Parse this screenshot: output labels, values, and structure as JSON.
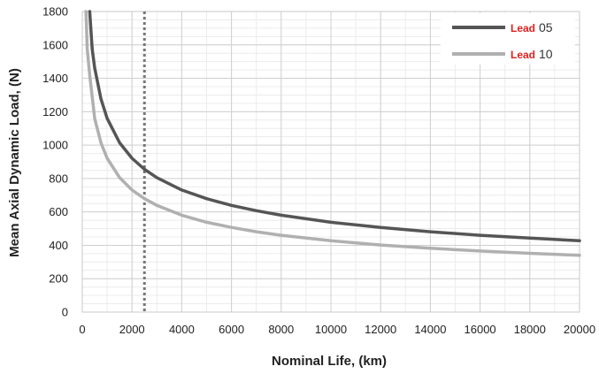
{
  "chart_data": {
    "type": "line",
    "xlabel": "Nominal Life, (km)",
    "ylabel": "Mean Axial Dynamic Load, (N)",
    "xlim": [
      0,
      20000
    ],
    "ylim": [
      0,
      1800
    ],
    "x_ticks": [
      0,
      2000,
      4000,
      6000,
      8000,
      10000,
      12000,
      14000,
      16000,
      18000,
      20000
    ],
    "y_ticks": [
      0,
      200,
      400,
      600,
      800,
      1000,
      1200,
      1400,
      1600,
      1800
    ],
    "grid": true,
    "legend_position": "top-right",
    "reference_line": {
      "x": 2500,
      "style": "dotted"
    },
    "series": [
      {
        "name": "Lead 05",
        "name_parts": [
          "Lead",
          "05"
        ],
        "color": "#555555",
        "x": [
          300,
          400,
          500,
          750,
          1000,
          1500,
          2000,
          2500,
          3000,
          4000,
          5000,
          6000,
          7000,
          8000,
          10000,
          12000,
          14000,
          16000,
          18000,
          20000
        ],
        "y": [
          1800,
          1575,
          1462,
          1277,
          1160,
          1014,
          921,
          855,
          805,
          731,
          679,
          639,
          607,
          580,
          538,
          507,
          481,
          460,
          443,
          427
        ]
      },
      {
        "name": "Lead 10",
        "name_parts": [
          "Lead",
          "10"
        ],
        "color": "#b0b0b0",
        "x": [
          150,
          200,
          300,
          500,
          750,
          1000,
          1500,
          2000,
          2500,
          3000,
          4000,
          5000,
          6000,
          7000,
          8000,
          10000,
          12000,
          14000,
          16000,
          18000,
          20000
        ],
        "y": [
          1800,
          1575,
          1419,
          1160,
          1014,
          921,
          805,
          731,
          679,
          639,
          580,
          538,
          507,
          481,
          460,
          427,
          402,
          382,
          366,
          352,
          340
        ]
      }
    ]
  }
}
